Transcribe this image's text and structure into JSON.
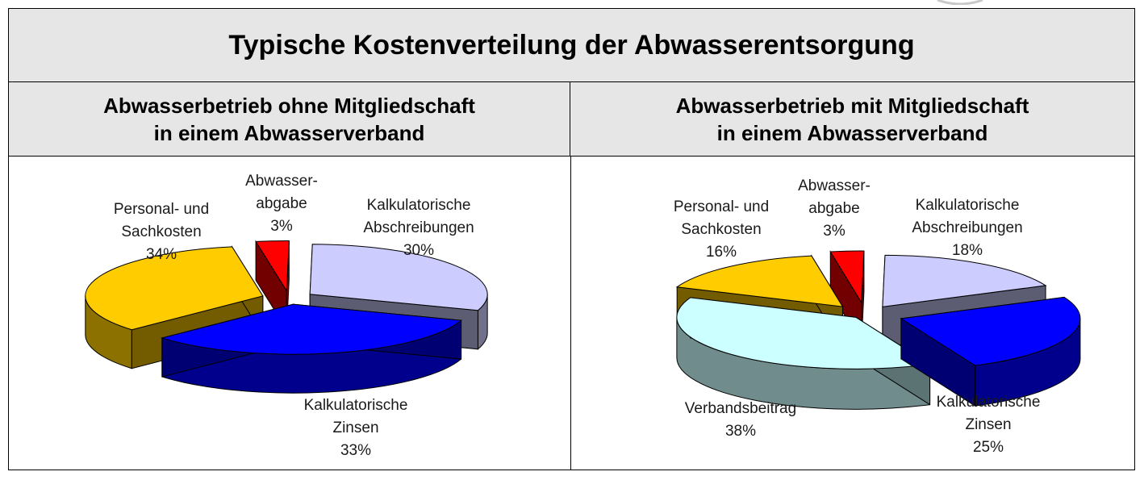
{
  "header": {
    "title": "Typische Kostenverteilung der Abwasserentsorgung"
  },
  "panels": {
    "left": {
      "line1": "Abwasserbetrieb ohne Mitgliedschaft",
      "line2": "in einem Abwasserverband"
    },
    "right": {
      "line1": "Abwasserbetrieb mit Mitgliedschaft",
      "line2": "in einem Abwasserverband"
    }
  },
  "chart_data": [
    {
      "type": "pie",
      "title": "Abwasserbetrieb ohne Mitgliedschaft in einem Abwasserverband",
      "slices": [
        {
          "label": [
            "Abwasser-",
            "abgabe"
          ],
          "value": 3,
          "value_text": "3%",
          "color": "#ff0000"
        },
        {
          "label": [
            "Kalkulatorische",
            "Abschreibungen"
          ],
          "value": 30,
          "value_text": "30%",
          "color": "#ccccff"
        },
        {
          "label": [
            "Kalkulatorische",
            "Zinsen"
          ],
          "value": 33,
          "value_text": "33%",
          "color": "#0000ff"
        },
        {
          "label": [
            "Personal- und",
            "Sachkosten"
          ],
          "value": 34,
          "value_text": "34%",
          "color": "#ffcc00"
        }
      ]
    },
    {
      "type": "pie",
      "title": "Abwasserbetrieb mit Mitgliedschaft in einem Abwasserverband",
      "slices": [
        {
          "label": [
            "Abwasser-",
            "abgabe"
          ],
          "value": 3,
          "value_text": "3%",
          "color": "#ff0000"
        },
        {
          "label": [
            "Kalkulatorische",
            "Abschreibungen"
          ],
          "value": 18,
          "value_text": "18%",
          "color": "#ccccff"
        },
        {
          "label": [
            "Kalkulatorische",
            "Zinsen"
          ],
          "value": 25,
          "value_text": "25%",
          "color": "#0000ff"
        },
        {
          "label": [
            "Verbandsbeitrag"
          ],
          "value": 38,
          "value_text": "38%",
          "color": "#ccffff"
        },
        {
          "label": [
            "Personal- und",
            "Sachkosten"
          ],
          "value": 16,
          "value_text": "16%",
          "color": "#ffcc00"
        }
      ]
    }
  ]
}
